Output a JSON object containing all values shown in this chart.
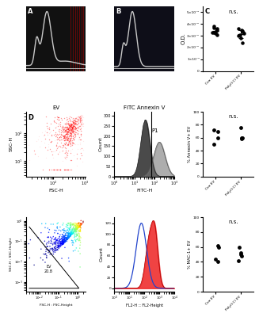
{
  "panel_C_con_ev": [
    0.035,
    0.033,
    0.034,
    0.036,
    0.032,
    0.037,
    0.038,
    0.031,
    0.033
  ],
  "panel_C_poly_ev": [
    0.03,
    0.034,
    0.032,
    0.036,
    0.028,
    0.033,
    0.035,
    0.024,
    0.031
  ],
  "panel_C_ylim": [
    0,
    0.055
  ],
  "panel_E_annexin_con": [
    50,
    70,
    72,
    60
  ],
  "panel_E_annexin_poly": [
    75,
    60,
    60,
    58
  ],
  "panel_E_ylim_annexin": [
    0,
    100
  ],
  "panel_G_mac1_con": [
    40,
    60,
    62,
    44
  ],
  "panel_G_mac1_poly": [
    60,
    42,
    50,
    52,
    48
  ],
  "panel_G_ylim_mac1": [
    0,
    100
  ],
  "ns_text": "n.s.",
  "xlabel_con": "Con EV",
  "xlabel_poly": "Poly(I:C) EV",
  "ylabel_C": "O.D.",
  "ylabel_E": "% Annexin V+ EV",
  "ylabel_G": "% MAC-1+ EV"
}
